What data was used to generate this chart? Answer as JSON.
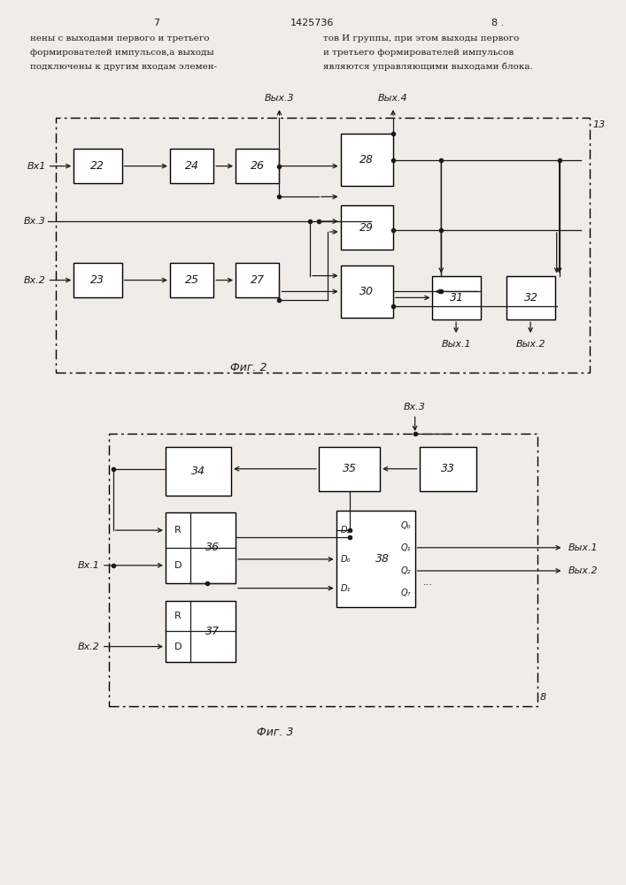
{
  "page_width": 7.07,
  "page_height": 10.0,
  "bg_color": "#f0ede8",
  "text_color": "#1a1a1a",
  "header": {
    "page_left": "7",
    "patent_num": "1425736",
    "page_right": "8 .",
    "col1_lines": [
      "нены с выходами первого и третьего",
      "формирователей импульсов,а выходы",
      "подключены к другим входам элемен-"
    ],
    "col2_lines": [
      "тов И группы, при этом выходы первого",
      "и третьего формирователей импульсов",
      "являются управляющими выходами блока."
    ]
  },
  "fig2_caption": "Фиг. 2",
  "fig3_caption": "Фиг. 3"
}
